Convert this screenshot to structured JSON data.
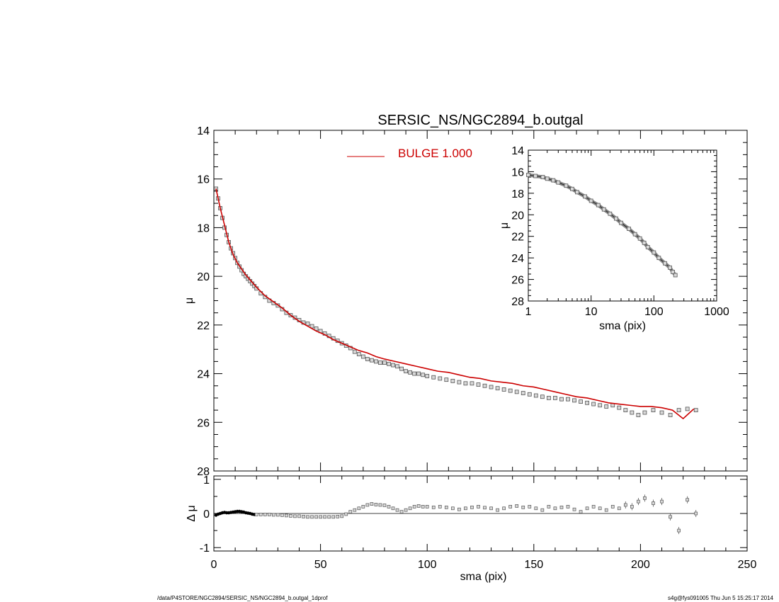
{
  "chart_data": [
    {
      "type": "scatter",
      "title": "SERSIC_NS/NGC2894_b.outgal",
      "xlabel": "",
      "ylabel": "μ",
      "xlim": [
        0,
        250
      ],
      "ylim": [
        28,
        14
      ],
      "y_inverted": true,
      "x_tick_labels": [
        "0",
        "50",
        "100",
        "150",
        "200",
        "250"
      ],
      "y_tick_labels": [
        "14",
        "16",
        "18",
        "20",
        "22",
        "24",
        "26",
        "28"
      ],
      "legend": {
        "label": "BULGE",
        "value": "1.000",
        "color": "#cc0000",
        "placement": "top-center"
      },
      "series": [
        {
          "marker": "square",
          "color": "#555555",
          "x": [
            1,
            2,
            3,
            4,
            5,
            6,
            7,
            8,
            9,
            10,
            11,
            12,
            13,
            14,
            15,
            16,
            17,
            18,
            19,
            20,
            22,
            24,
            26,
            28,
            30,
            32,
            34,
            36,
            38,
            40,
            42,
            44,
            46,
            48,
            50,
            52,
            54,
            56,
            58,
            60,
            62,
            64,
            66,
            68,
            70,
            72,
            74,
            76,
            78,
            80,
            82,
            84,
            86,
            88,
            90,
            92,
            94,
            96,
            98,
            100,
            103,
            106,
            109,
            112,
            115,
            118,
            121,
            124,
            127,
            130,
            133,
            136,
            139,
            142,
            145,
            148,
            151,
            154,
            157,
            160,
            163,
            166,
            169,
            172,
            175,
            178,
            181,
            184,
            187,
            190,
            193,
            196,
            199,
            202,
            206,
            210,
            214,
            218,
            222,
            226
          ],
          "y": [
            16.4,
            16.8,
            17.2,
            17.6,
            18.0,
            18.3,
            18.6,
            18.85,
            19.05,
            19.25,
            19.45,
            19.6,
            19.75,
            19.9,
            20.0,
            20.1,
            20.2,
            20.3,
            20.4,
            20.5,
            20.7,
            20.85,
            21.0,
            21.1,
            21.2,
            21.35,
            21.5,
            21.6,
            21.7,
            21.8,
            21.9,
            21.95,
            22.05,
            22.15,
            22.25,
            22.35,
            22.45,
            22.55,
            22.65,
            22.75,
            22.85,
            22.95,
            23.1,
            23.2,
            23.3,
            23.4,
            23.45,
            23.5,
            23.55,
            23.55,
            23.6,
            23.65,
            23.7,
            23.8,
            23.9,
            23.95,
            24.0,
            24.0,
            24.05,
            24.1,
            24.15,
            24.2,
            24.25,
            24.3,
            24.35,
            24.4,
            24.4,
            24.45,
            24.5,
            24.55,
            24.6,
            24.65,
            24.7,
            24.75,
            24.8,
            24.85,
            24.9,
            24.95,
            25.0,
            25.0,
            25.05,
            25.05,
            25.1,
            25.15,
            25.2,
            25.25,
            25.3,
            25.35,
            25.3,
            25.4,
            25.5,
            25.6,
            25.7,
            25.6,
            25.5,
            25.6,
            25.7,
            25.5,
            25.45,
            25.5
          ]
        },
        {
          "name": "BULGE",
          "marker": "line",
          "color": "#cc0000",
          "x": [
            1,
            3,
            5,
            7,
            9,
            11,
            13,
            15,
            17,
            20,
            24,
            28,
            32,
            36,
            40,
            44,
            48,
            52,
            56,
            60,
            64,
            68,
            72,
            76,
            80,
            85,
            90,
            95,
            100,
            105,
            110,
            115,
            120,
            125,
            130,
            135,
            140,
            145,
            150,
            155,
            160,
            165,
            170,
            175,
            180,
            185,
            190,
            195,
            200,
            205,
            210,
            215,
            220,
            225
          ],
          "y": [
            16.4,
            17.2,
            17.9,
            18.6,
            19.1,
            19.45,
            19.7,
            19.95,
            20.15,
            20.45,
            20.8,
            21.05,
            21.3,
            21.6,
            21.85,
            22.05,
            22.25,
            22.4,
            22.6,
            22.75,
            22.9,
            23.05,
            23.15,
            23.3,
            23.4,
            23.5,
            23.6,
            23.7,
            23.8,
            23.9,
            23.95,
            24.05,
            24.15,
            24.2,
            24.3,
            24.35,
            24.4,
            24.5,
            24.55,
            24.65,
            24.75,
            24.85,
            24.95,
            25.0,
            25.1,
            25.2,
            25.25,
            25.3,
            25.35,
            25.35,
            25.4,
            25.5,
            25.85,
            25.45
          ]
        }
      ]
    },
    {
      "type": "scatter",
      "title": "",
      "xlabel": "sma (pix)",
      "ylabel": "μ",
      "x_scale": "log",
      "xlim": [
        1,
        1000
      ],
      "ylim": [
        28,
        14
      ],
      "y_inverted": true,
      "x_tick_labels": [
        "1",
        "10",
        "100",
        "1000"
      ],
      "y_tick_labels": [
        "14",
        "16",
        "18",
        "20",
        "22",
        "24",
        "26",
        "28"
      ],
      "series": [
        {
          "marker": "square",
          "color": "#555555",
          "x": [
            1,
            1.3,
            1.7,
            2,
            2.5,
            3,
            4,
            5,
            6,
            8,
            10,
            13,
            16,
            20,
            25,
            30,
            40,
            50,
            60,
            70,
            80,
            100,
            120,
            150,
            180,
            200,
            220
          ],
          "y": [
            16.3,
            16.4,
            16.5,
            16.65,
            16.8,
            17.0,
            17.3,
            17.6,
            17.9,
            18.3,
            18.7,
            19.1,
            19.5,
            19.9,
            20.35,
            20.75,
            21.3,
            21.8,
            22.2,
            22.6,
            23.0,
            23.5,
            24.0,
            24.5,
            24.9,
            25.3,
            25.6
          ]
        }
      ]
    },
    {
      "type": "scatter",
      "title": "",
      "xlabel": "sma (pix)",
      "ylabel": "Δ μ",
      "xlim": [
        0,
        250
      ],
      "ylim": [
        -1.1,
        1.1
      ],
      "x_tick_labels": [
        "0",
        "50",
        "100",
        "150",
        "200",
        "250"
      ],
      "y_tick_labels": [
        "1",
        "0",
        "-1"
      ],
      "reference_line": 0,
      "series": [
        {
          "marker": "square",
          "color": "#555555",
          "x": [
            1,
            2,
            3,
            4,
            5,
            6,
            7,
            8,
            9,
            10,
            11,
            12,
            13,
            14,
            15,
            16,
            17,
            18,
            19,
            20,
            22,
            24,
            26,
            28,
            30,
            32,
            34,
            36,
            38,
            40,
            42,
            44,
            46,
            48,
            50,
            52,
            54,
            56,
            58,
            60,
            62,
            64,
            66,
            68,
            70,
            72,
            74,
            76,
            78,
            80,
            82,
            84,
            86,
            88,
            90,
            92,
            94,
            96,
            98,
            100,
            103,
            106,
            109,
            112,
            115,
            118,
            121,
            124,
            127,
            130,
            133,
            136,
            139,
            142,
            145,
            148,
            151,
            154,
            157,
            160,
            163,
            166,
            169,
            172,
            175,
            178,
            181,
            184,
            187,
            190,
            193,
            196,
            199,
            202,
            206,
            210,
            214,
            218,
            222,
            226
          ],
          "y": [
            -0.05,
            -0.02,
            0.0,
            0.02,
            0.03,
            0.02,
            0.02,
            0.03,
            0.04,
            0.05,
            0.06,
            0.06,
            0.05,
            0.04,
            0.02,
            0.01,
            0.0,
            -0.02,
            -0.03,
            -0.03,
            -0.03,
            -0.03,
            -0.03,
            -0.04,
            -0.04,
            -0.05,
            -0.06,
            -0.07,
            -0.08,
            -0.08,
            -0.09,
            -0.1,
            -0.1,
            -0.1,
            -0.1,
            -0.1,
            -0.1,
            -0.1,
            -0.09,
            -0.08,
            -0.02,
            0.05,
            0.1,
            0.15,
            0.2,
            0.25,
            0.28,
            0.26,
            0.25,
            0.24,
            0.2,
            0.15,
            0.1,
            0.05,
            0.1,
            0.15,
            0.2,
            0.22,
            0.2,
            0.2,
            0.18,
            0.2,
            0.18,
            0.15,
            0.12,
            0.15,
            0.18,
            0.2,
            0.17,
            0.15,
            0.1,
            0.15,
            0.2,
            0.22,
            0.18,
            0.2,
            0.15,
            0.1,
            0.2,
            0.15,
            0.18,
            0.2,
            0.12,
            0.05,
            0.15,
            0.2,
            0.15,
            0.1,
            0.2,
            0.15,
            0.25,
            0.2,
            0.35,
            0.45,
            0.3,
            0.35,
            -0.1,
            -0.5,
            0.4,
            0.0
          ]
        }
      ]
    }
  ],
  "footer": {
    "left": "/data/P4STORE/NGC2894/SERSIC_NS/NGC2894_b.outgal_1dprof",
    "right": "s4g@fys091005  Thu Jun  5 15:25:17 2014"
  }
}
